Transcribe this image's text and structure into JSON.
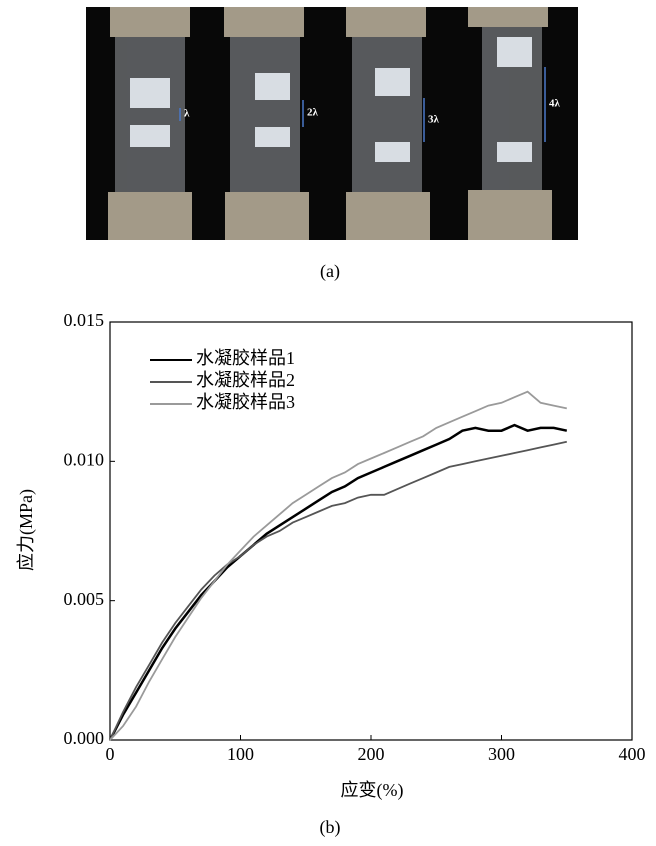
{
  "photo_labels": [
    "λ",
    "2λ",
    "3λ",
    "4λ"
  ],
  "captions": [
    "(a)",
    "(b)"
  ],
  "chart_data": {
    "type": "line",
    "xlabel": "应变(%)",
    "ylabel": "应力(MPa)",
    "x": [
      0,
      10,
      20,
      30,
      40,
      50,
      60,
      70,
      80,
      90,
      100,
      110,
      120,
      130,
      140,
      150,
      160,
      170,
      180,
      190,
      200,
      210,
      220,
      230,
      240,
      250,
      260,
      270,
      280,
      290,
      300,
      310,
      320,
      330,
      340,
      350
    ],
    "series": [
      {
        "name": "水凝胶样品1",
        "color": "#000000",
        "values": [
          0,
          0.0009,
          0.0017,
          0.0025,
          0.0033,
          0.004,
          0.0046,
          0.0052,
          0.0057,
          0.0062,
          0.0066,
          0.007,
          0.0074,
          0.0077,
          0.008,
          0.0083,
          0.0086,
          0.0089,
          0.0091,
          0.0094,
          0.0096,
          0.0098,
          0.01,
          0.0102,
          0.0104,
          0.0106,
          0.0108,
          0.0111,
          0.0112,
          0.0111,
          0.0111,
          0.0113,
          0.0111,
          0.0112,
          0.0112,
          0.0111
        ]
      },
      {
        "name": "水凝胶样品2",
        "color": "#555555",
        "values": [
          0,
          0.001,
          0.0019,
          0.0027,
          0.0035,
          0.0042,
          0.0048,
          0.0054,
          0.0059,
          0.0063,
          0.0066,
          0.007,
          0.0073,
          0.0075,
          0.0078,
          0.008,
          0.0082,
          0.0084,
          0.0085,
          0.0087,
          0.0088,
          0.0088,
          0.009,
          0.0092,
          0.0094,
          0.0096,
          0.0098,
          0.0099,
          0.01,
          0.0101,
          0.0102,
          0.0103,
          0.0104,
          0.0105,
          0.0106,
          0.0107
        ]
      },
      {
        "name": "水凝胶样品3",
        "color": "#9a9a9a",
        "values": [
          0,
          0.0005,
          0.0012,
          0.0021,
          0.0029,
          0.0037,
          0.0044,
          0.0051,
          0.0057,
          0.0063,
          0.0068,
          0.0073,
          0.0077,
          0.0081,
          0.0085,
          0.0088,
          0.0091,
          0.0094,
          0.0096,
          0.0099,
          0.0101,
          0.0103,
          0.0105,
          0.0107,
          0.0109,
          0.0112,
          0.0114,
          0.0116,
          0.0118,
          0.012,
          0.0121,
          0.0123,
          0.0125,
          0.0121,
          0.012,
          0.0119
        ]
      }
    ],
    "xlim": [
      0,
      400
    ],
    "xticks": [
      0,
      100,
      200,
      300,
      400
    ],
    "ylim": [
      0,
      0.015
    ],
    "yticks": [
      {
        "value": 0,
        "label": "0.000"
      },
      0.005,
      {
        "value": 0.01,
        "label": "0.010"
      },
      0.015
    ],
    "grid": false,
    "legend": "upper left"
  }
}
